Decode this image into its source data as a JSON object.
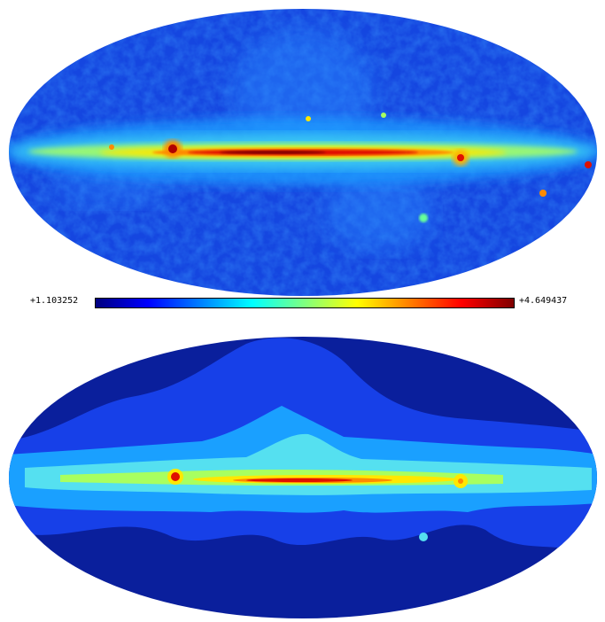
{
  "colorbar": {
    "min_label": "+1.103252",
    "max_label": "+4.649437",
    "stops": [
      "#00007f",
      "#0000ff",
      "#007fff",
      "#00ffff",
      "#7fff7f",
      "#ffff00",
      "#ff7f00",
      "#ff0000",
      "#7f0000"
    ]
  },
  "palette": {
    "background": "#ffffff",
    "deep_blue": "#0a1f9c",
    "blue": "#1740e8",
    "sky": "#1aa0ff",
    "cyan": "#55e0f0",
    "green": "#a8ff60",
    "yellow": "#ffe800",
    "orange": "#ff8a00",
    "red": "#e01000",
    "dark_red": "#800000"
  }
}
